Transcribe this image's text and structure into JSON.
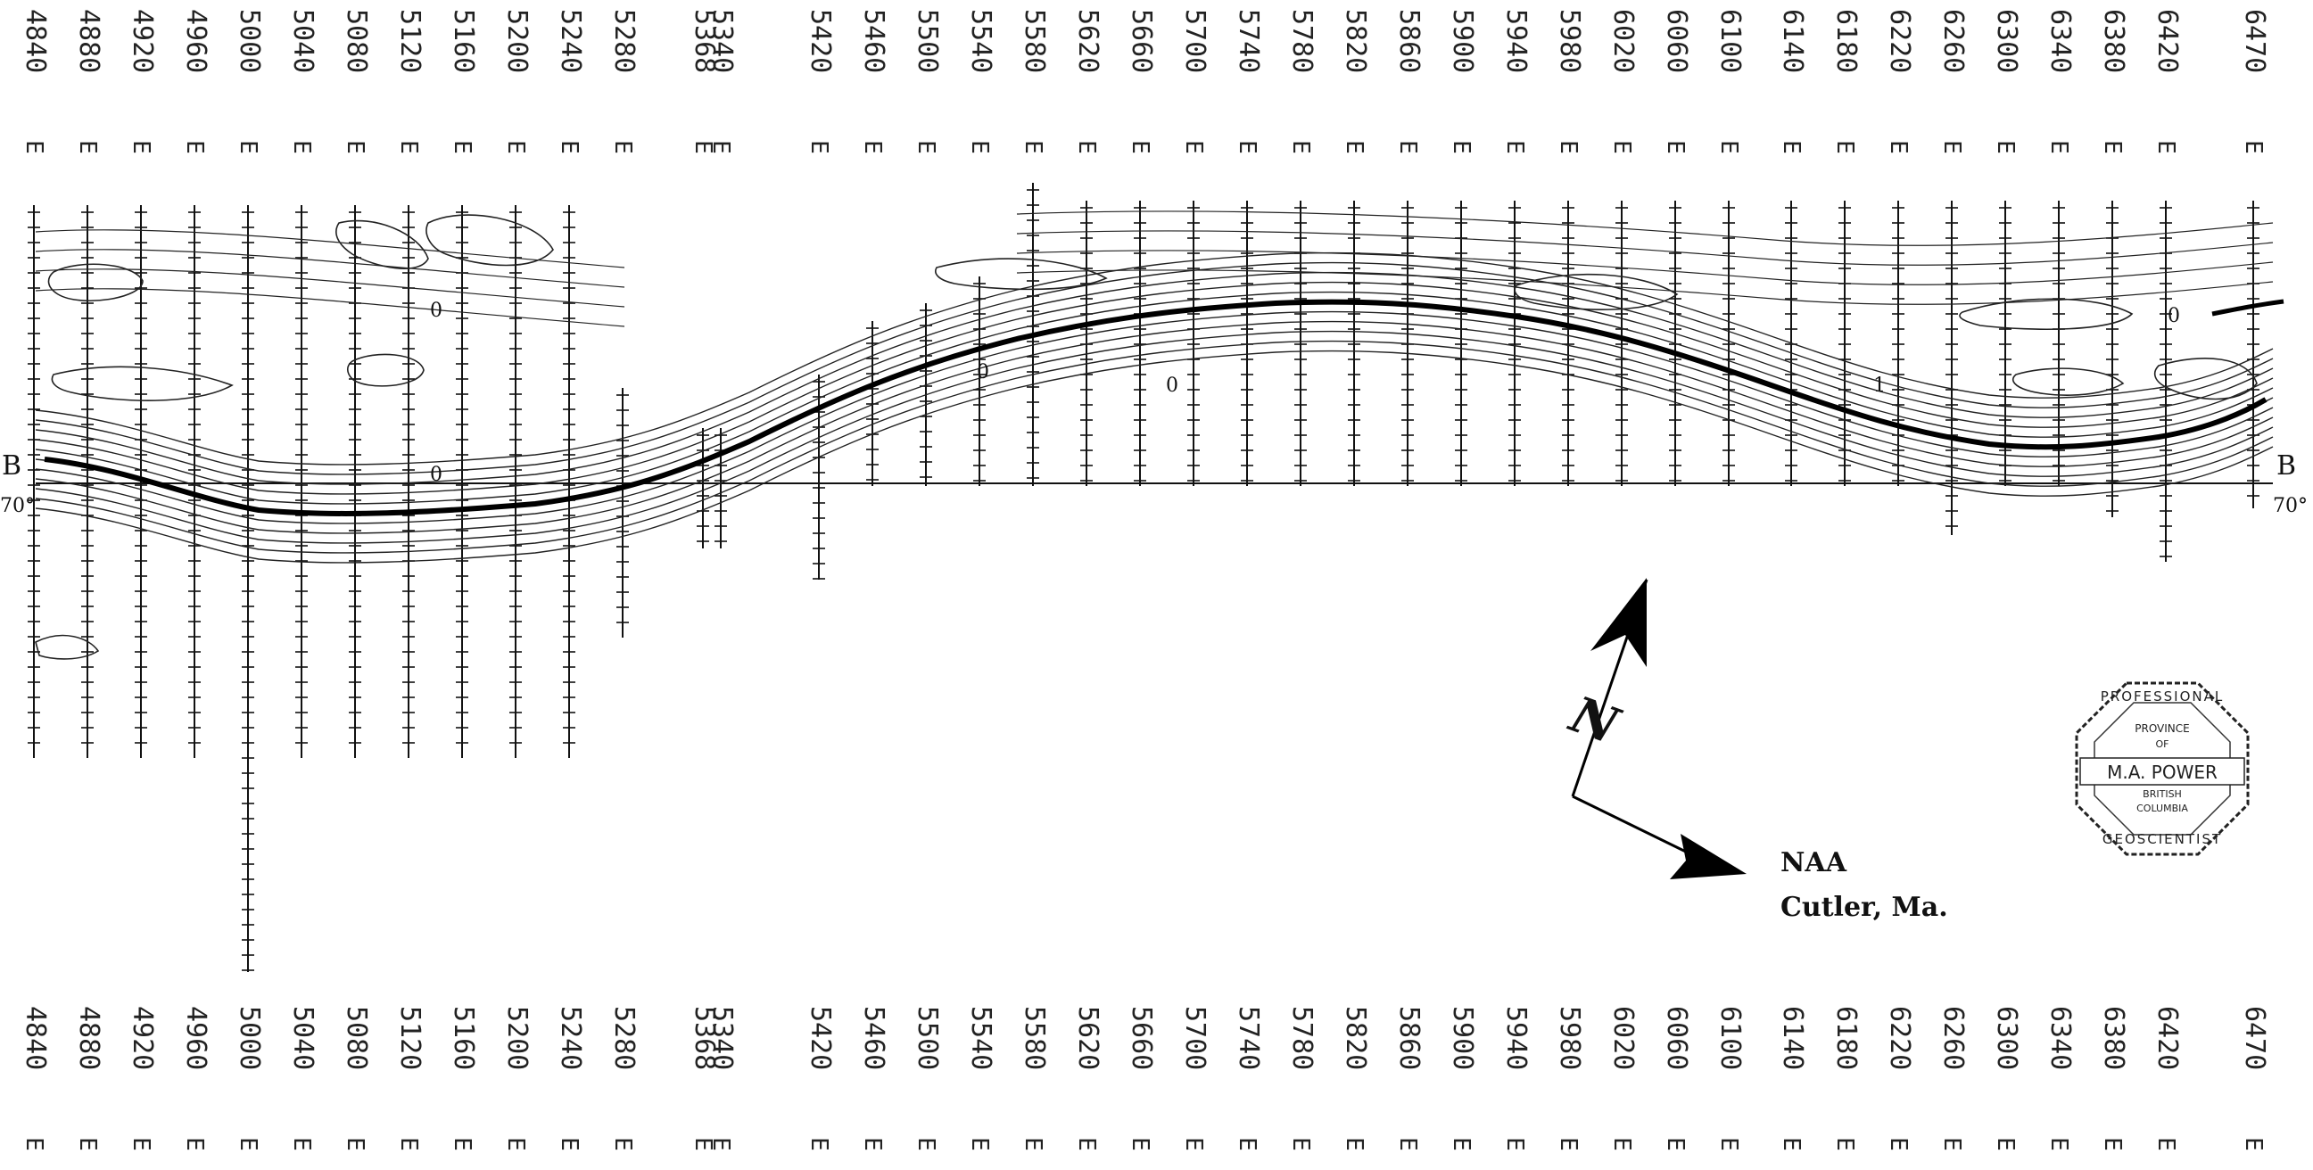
{
  "line_labels": [
    "4840",
    "4880",
    "4920",
    "4960",
    "5000",
    "5040",
    "5080",
    "5120",
    "5160",
    "5200",
    "5240",
    "5280",
    "5368",
    "5340",
    "5420",
    "5460",
    "5500",
    "5540",
    "5580",
    "5620",
    "5660",
    "5700",
    "5740",
    "5780",
    "5820",
    "5860",
    "5900",
    "5940",
    "5980",
    "6020",
    "6060",
    "6100",
    "6140",
    "6180",
    "6220",
    "6260",
    "6300",
    "6340",
    "6380",
    "6420",
    "6470"
  ],
  "easting_suffix": "E",
  "section_left": {
    "letter": "B",
    "dip": "70°"
  },
  "section_right": {
    "letter": "B",
    "dip": "70°"
  },
  "north_arrow": {
    "letter": "N"
  },
  "notes": {
    "line1": "NAA",
    "line2": "Cutler, Ma."
  },
  "contour_labels": [
    "0",
    "0",
    "0",
    "0",
    "1",
    "0"
  ],
  "seal": {
    "top": "PROFESSIONAL",
    "province": "PROVINCE",
    "of": "OF",
    "name": "M.A. POWER",
    "region1": "BRITISH",
    "region2": "COLUMBIA",
    "bottom": "GEOSCIENTIST"
  },
  "colors": {
    "ink": "#111111",
    "paper": "#ffffff"
  }
}
